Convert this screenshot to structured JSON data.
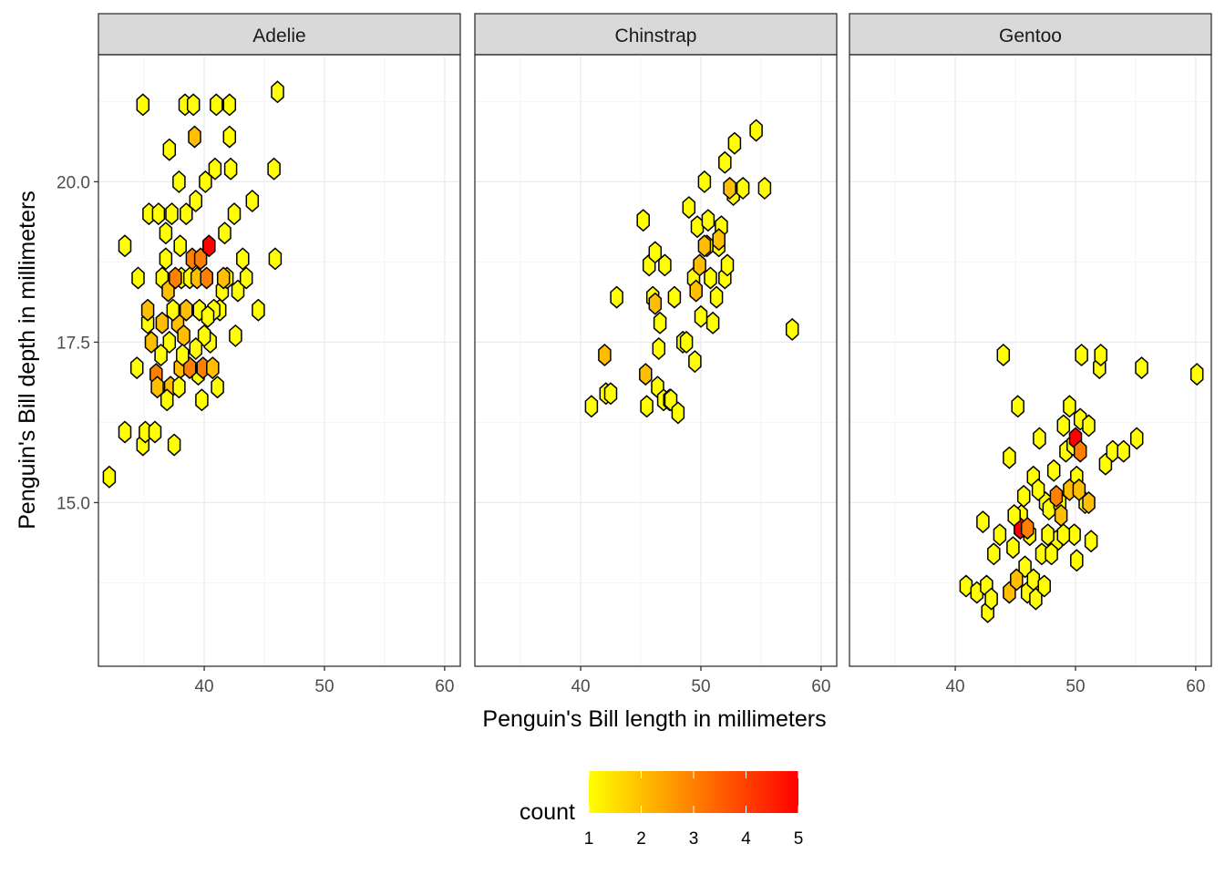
{
  "colors": {
    "low": "#ffff00",
    "high": "#ff0000",
    "hex_outline": "#000000",
    "panel_border": "#333333",
    "strip_fill": "#d9d9d9",
    "grid_major": "#ebebeb",
    "grid_minor": "#f5f5f5"
  },
  "chart_data": {
    "type": "hexbin",
    "xlabel": "Penguin's Bill length in millimeters",
    "ylabel": "Penguin's Bill depth in millimeters",
    "xlim": [
      31.2,
      61.3
    ],
    "ylim": [
      12.45,
      21.98
    ],
    "x_ticks": [
      {
        "value": 40,
        "label": "40"
      },
      {
        "value": 50,
        "label": "50"
      },
      {
        "value": 60,
        "label": "60"
      }
    ],
    "y_ticks": [
      {
        "value": 15,
        "label": "15.0"
      },
      {
        "value": 17.5,
        "label": "17.5"
      },
      {
        "value": 20,
        "label": "20.0"
      }
    ],
    "legend": {
      "title": "count",
      "min": 1,
      "max": 5,
      "ticks": [
        {
          "value": 1,
          "label": "1"
        },
        {
          "value": 2,
          "label": "2"
        },
        {
          "value": 3,
          "label": "3"
        },
        {
          "value": 4,
          "label": "4"
        },
        {
          "value": 5,
          "label": "5"
        }
      ]
    },
    "panels": [
      {
        "label": "Adelie",
        "hexes": [
          [
            32.1,
            15.4,
            1
          ],
          [
            33.4,
            16.1,
            1
          ],
          [
            33.4,
            19.0,
            1
          ],
          [
            34.4,
            17.1,
            1
          ],
          [
            34.5,
            18.5,
            1
          ],
          [
            34.9,
            15.9,
            1
          ],
          [
            34.9,
            21.2,
            1
          ],
          [
            35.1,
            16.1,
            1
          ],
          [
            35.3,
            17.8,
            1
          ],
          [
            35.4,
            19.5,
            1
          ],
          [
            35.9,
            16.1,
            1
          ],
          [
            36.2,
            19.5,
            1
          ],
          [
            36.5,
            18.5,
            1
          ],
          [
            37.1,
            20.5,
            1
          ],
          [
            37.3,
            19.5,
            1
          ],
          [
            37.5,
            15.9,
            1
          ],
          [
            37.9,
            20.0,
            1
          ],
          [
            38.1,
            18.5,
            1
          ],
          [
            38.4,
            21.2,
            1
          ],
          [
            38.8,
            18.5,
            1
          ],
          [
            39.1,
            21.2,
            1
          ],
          [
            39.3,
            19.7,
            1
          ],
          [
            39.5,
            17.0,
            1
          ],
          [
            39.8,
            16.6,
            1
          ],
          [
            40.1,
            20.0,
            1
          ],
          [
            40.5,
            17.5,
            1
          ],
          [
            40.9,
            20.2,
            1
          ],
          [
            41.0,
            21.2,
            1
          ],
          [
            41.1,
            16.8,
            1
          ],
          [
            41.3,
            18.0,
            1
          ],
          [
            41.5,
            18.3,
            1
          ],
          [
            41.9,
            18.5,
            1
          ],
          [
            42.1,
            21.2,
            1
          ],
          [
            42.1,
            20.7,
            1
          ],
          [
            42.2,
            20.2,
            1
          ],
          [
            42.5,
            19.5,
            1
          ],
          [
            42.6,
            17.6,
            1
          ],
          [
            42.8,
            18.3,
            1
          ],
          [
            43.2,
            18.8,
            1
          ],
          [
            43.5,
            18.5,
            1
          ],
          [
            44.0,
            19.7,
            1
          ],
          [
            44.5,
            18.0,
            1
          ],
          [
            45.8,
            20.2,
            1
          ],
          [
            46.1,
            21.4,
            1
          ],
          [
            45.9,
            18.8,
            1
          ],
          [
            35.3,
            18.0,
            2
          ],
          [
            35.6,
            17.5,
            2
          ],
          [
            36.0,
            17.0,
            3
          ],
          [
            36.1,
            16.8,
            2
          ],
          [
            36.5,
            17.8,
            2
          ],
          [
            37.0,
            18.3,
            2
          ],
          [
            37.2,
            16.8,
            2
          ],
          [
            37.6,
            18.5,
            3
          ],
          [
            37.8,
            17.8,
            2
          ],
          [
            38.0,
            17.1,
            2
          ],
          [
            38.5,
            18.0,
            2
          ],
          [
            38.8,
            17.1,
            3
          ],
          [
            39.0,
            18.8,
            3
          ],
          [
            39.2,
            20.7,
            2
          ],
          [
            39.4,
            18.5,
            2
          ],
          [
            39.7,
            18.8,
            3
          ],
          [
            39.9,
            17.1,
            3
          ],
          [
            40.4,
            19.0,
            5
          ],
          [
            40.2,
            18.5,
            3
          ],
          [
            40.7,
            17.1,
            2
          ],
          [
            41.6,
            18.5,
            2
          ],
          [
            38.3,
            17.6,
            2
          ],
          [
            37.1,
            17.5,
            1
          ],
          [
            36.8,
            18.8,
            1
          ],
          [
            36.8,
            19.2,
            1
          ],
          [
            37.4,
            18.0,
            1
          ],
          [
            38.0,
            19.0,
            1
          ],
          [
            38.5,
            19.5,
            1
          ],
          [
            39.6,
            18.0,
            1
          ],
          [
            40.0,
            17.6,
            1
          ],
          [
            40.8,
            18.0,
            1
          ],
          [
            36.4,
            17.3,
            1
          ],
          [
            36.9,
            16.6,
            1
          ],
          [
            37.9,
            16.8,
            1
          ],
          [
            38.2,
            17.3,
            1
          ],
          [
            39.3,
            17.4,
            1
          ],
          [
            40.3,
            17.9,
            1
          ],
          [
            41.7,
            19.2,
            1
          ]
        ]
      },
      {
        "label": "Chinstrap",
        "hexes": [
          [
            40.9,
            16.5,
            1
          ],
          [
            42.1,
            16.7,
            1
          ],
          [
            42.5,
            16.7,
            1
          ],
          [
            43.0,
            18.2,
            1
          ],
          [
            45.2,
            19.4,
            1
          ],
          [
            45.5,
            16.5,
            1
          ],
          [
            45.7,
            18.7,
            1
          ],
          [
            46.0,
            18.2,
            1
          ],
          [
            46.2,
            18.9,
            1
          ],
          [
            46.4,
            16.8,
            1
          ],
          [
            46.5,
            17.4,
            1
          ],
          [
            46.6,
            17.8,
            1
          ],
          [
            46.9,
            16.6,
            1
          ],
          [
            47.0,
            18.7,
            1
          ],
          [
            47.4,
            16.6,
            1
          ],
          [
            47.5,
            16.6,
            1
          ],
          [
            47.8,
            18.2,
            1
          ],
          [
            48.1,
            16.4,
            1
          ],
          [
            48.5,
            17.5,
            1
          ],
          [
            49.0,
            19.6,
            1
          ],
          [
            49.4,
            18.5,
            1
          ],
          [
            49.5,
            17.2,
            1
          ],
          [
            49.7,
            19.3,
            1
          ],
          [
            50.0,
            17.9,
            1
          ],
          [
            50.3,
            20.0,
            1
          ],
          [
            50.5,
            19.0,
            1
          ],
          [
            50.6,
            19.4,
            1
          ],
          [
            50.8,
            18.5,
            1
          ],
          [
            51.0,
            17.8,
            1
          ],
          [
            51.3,
            18.2,
            1
          ],
          [
            51.5,
            19.0,
            1
          ],
          [
            51.7,
            19.3,
            1
          ],
          [
            52.0,
            18.5,
            1
          ],
          [
            52.2,
            18.7,
            1
          ],
          [
            52.7,
            19.8,
            1
          ],
          [
            52.0,
            20.3,
            1
          ],
          [
            52.8,
            20.6,
            1
          ],
          [
            53.5,
            19.9,
            1
          ],
          [
            54.6,
            20.8,
            1
          ],
          [
            55.3,
            19.9,
            1
          ],
          [
            57.6,
            17.7,
            1
          ],
          [
            42.0,
            17.3,
            2
          ],
          [
            45.4,
            17.0,
            2
          ],
          [
            46.2,
            18.1,
            2
          ],
          [
            49.6,
            18.3,
            2
          ],
          [
            51.5,
            19.1,
            2
          ],
          [
            52.4,
            19.9,
            2
          ],
          [
            50.3,
            19.0,
            2
          ],
          [
            49.9,
            18.7,
            2
          ],
          [
            48.8,
            17.5,
            1
          ]
        ]
      },
      {
        "label": "Gentoo",
        "hexes": [
          [
            40.9,
            13.7,
            1
          ],
          [
            41.8,
            13.6,
            1
          ],
          [
            42.3,
            14.7,
            1
          ],
          [
            42.6,
            13.7,
            1
          ],
          [
            42.7,
            13.3,
            1
          ],
          [
            43.0,
            13.5,
            1
          ],
          [
            43.2,
            14.2,
            1
          ],
          [
            43.7,
            14.5,
            1
          ],
          [
            44.0,
            17.3,
            1
          ],
          [
            44.5,
            15.7,
            1
          ],
          [
            44.8,
            14.3,
            1
          ],
          [
            45.2,
            16.5,
            1
          ],
          [
            45.5,
            14.8,
            1
          ],
          [
            45.8,
            14.0,
            1
          ],
          [
            46.0,
            13.6,
            1
          ],
          [
            46.2,
            14.5,
            1
          ],
          [
            46.5,
            15.4,
            1
          ],
          [
            46.7,
            13.5,
            1
          ],
          [
            47.0,
            16.0,
            1
          ],
          [
            47.2,
            14.2,
            1
          ],
          [
            47.5,
            15.0,
            1
          ],
          [
            47.8,
            14.9,
            1
          ],
          [
            48.2,
            15.5,
            1
          ],
          [
            48.4,
            14.4,
            1
          ],
          [
            48.7,
            15.0,
            1
          ],
          [
            49.0,
            16.2,
            1
          ],
          [
            49.2,
            15.8,
            1
          ],
          [
            49.5,
            16.5,
            1
          ],
          [
            49.8,
            15.9,
            1
          ],
          [
            49.9,
            14.5,
            1
          ],
          [
            50.1,
            14.1,
            1
          ],
          [
            50.4,
            16.3,
            1
          ],
          [
            50.5,
            17.3,
            1
          ],
          [
            50.8,
            15.0,
            1
          ],
          [
            51.1,
            16.2,
            1
          ],
          [
            51.3,
            14.4,
            1
          ],
          [
            52.0,
            17.1,
            1
          ],
          [
            52.1,
            17.3,
            1
          ],
          [
            52.5,
            15.6,
            1
          ],
          [
            53.1,
            15.8,
            1
          ],
          [
            54.0,
            15.8,
            1
          ],
          [
            55.1,
            16.0,
            1
          ],
          [
            55.5,
            17.1,
            1
          ],
          [
            60.1,
            17.0,
            1
          ],
          [
            50.1,
            15.4,
            1
          ],
          [
            44.5,
            13.6,
            2
          ],
          [
            45.1,
            13.8,
            2
          ],
          [
            45.4,
            14.6,
            5
          ],
          [
            46.0,
            14.6,
            3
          ],
          [
            48.4,
            15.1,
            3
          ],
          [
            48.8,
            14.8,
            2
          ],
          [
            49.5,
            15.2,
            2
          ],
          [
            50.0,
            16.0,
            5
          ],
          [
            50.4,
            15.8,
            3
          ],
          [
            50.3,
            15.2,
            2
          ],
          [
            51.1,
            15.0,
            2
          ],
          [
            46.5,
            13.8,
            1
          ],
          [
            47.4,
            13.7,
            1
          ],
          [
            48.0,
            14.2,
            1
          ],
          [
            44.9,
            14.8,
            1
          ],
          [
            45.7,
            15.1,
            1
          ],
          [
            46.9,
            15.2,
            1
          ],
          [
            49.0,
            14.5,
            1
          ],
          [
            47.7,
            14.5,
            1
          ]
        ]
      }
    ]
  }
}
